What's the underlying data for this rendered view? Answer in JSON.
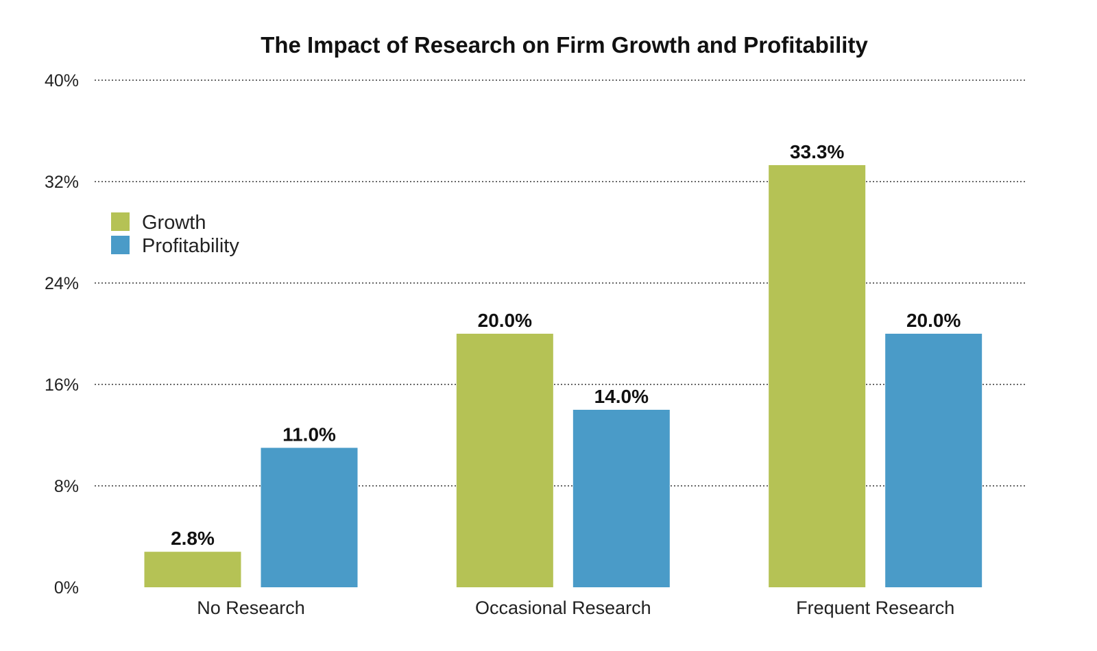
{
  "chart_data": {
    "type": "bar",
    "title": "The Impact of Research on Firm Growth and Profitability",
    "xlabel": "",
    "ylabel": "",
    "categories": [
      "No Research",
      "Occasional Research",
      "Frequent Research"
    ],
    "series": [
      {
        "name": "Growth",
        "values": [
          2.8,
          20.0,
          33.3
        ],
        "labels": [
          "2.8%",
          "20.0%",
          "33.3%"
        ],
        "color": "#b5c255"
      },
      {
        "name": "Profitability",
        "values": [
          11.0,
          14.0,
          20.0
        ],
        "labels": [
          "11.0%",
          "14.0%",
          "20.0%"
        ],
        "color": "#4a9bc8"
      }
    ],
    "ylim": [
      0,
      40
    ],
    "yticks": [
      0,
      8,
      16,
      24,
      32,
      40
    ],
    "ytick_labels": [
      "0%",
      "8%",
      "16%",
      "24%",
      "32%",
      "40%"
    ],
    "grid": true,
    "legend_position": "upper-left"
  }
}
